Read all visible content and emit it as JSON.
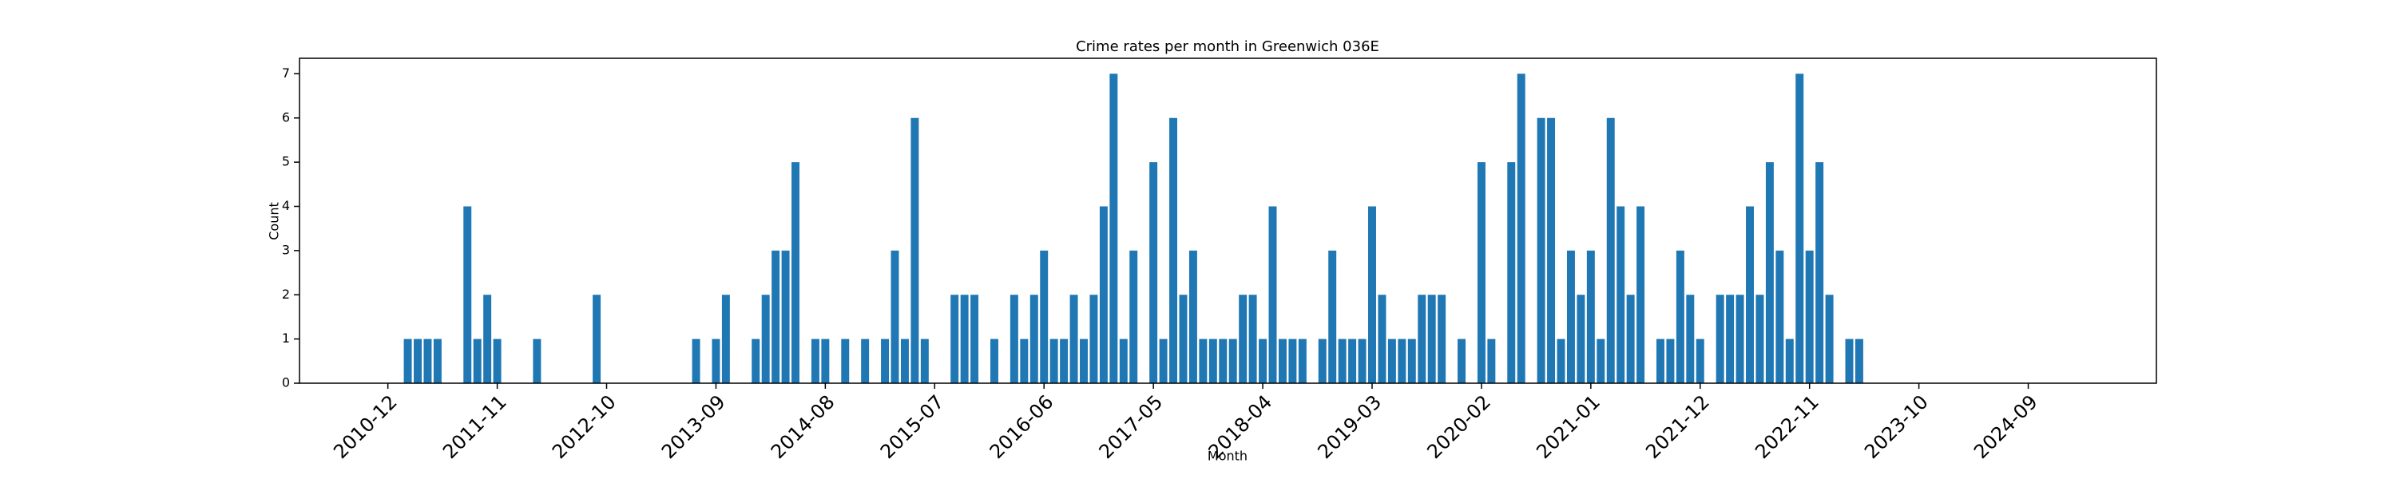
{
  "chart_data": {
    "type": "bar",
    "title": "Crime rates per month in Greenwich 036E",
    "xlabel": "Month",
    "ylabel": "Count",
    "color": "#1f77b4",
    "categories": [
      "2010-12",
      null,
      null,
      null,
      null,
      null,
      null,
      null,
      null,
      null,
      null,
      "2011-11",
      null,
      null,
      null,
      null,
      null,
      null,
      null,
      null,
      null,
      null,
      "2012-10",
      null,
      null,
      null,
      null,
      null,
      null,
      null,
      null,
      null,
      null,
      "2013-09",
      null,
      null,
      null,
      null,
      null,
      null,
      null,
      null,
      null,
      null,
      "2014-08",
      null,
      null,
      null,
      null,
      null,
      null,
      null,
      null,
      null,
      null,
      "2015-07",
      null,
      null,
      null,
      null,
      null,
      null,
      null,
      null,
      null,
      null,
      "2016-06",
      null,
      null,
      null,
      null,
      null,
      null,
      null,
      null,
      null,
      null,
      "2017-05",
      null,
      null,
      null,
      null,
      null,
      null,
      null,
      null,
      null,
      null,
      "2018-04",
      null,
      null,
      null,
      null,
      null,
      null,
      null,
      null,
      null,
      null,
      "2019-03",
      null,
      null,
      null,
      null,
      null,
      null,
      null,
      null,
      null,
      null,
      "2020-02",
      null,
      null,
      null,
      null,
      null,
      null,
      null,
      null,
      null,
      null,
      "2021-01",
      null,
      null,
      null,
      null,
      null,
      null,
      null,
      null,
      null,
      null,
      "2021-12",
      null,
      null,
      null,
      null,
      null,
      null,
      null,
      null,
      null,
      null,
      "2022-11",
      null,
      null,
      null,
      null,
      null,
      null,
      null,
      null,
      null,
      null,
      "2023-10",
      null,
      null,
      null,
      null,
      null,
      null,
      null,
      null,
      null,
      null,
      "2024-09",
      null,
      null,
      null,
      null
    ],
    "values": [
      0,
      0,
      1,
      1,
      1,
      1,
      0,
      0,
      4,
      1,
      2,
      1,
      0,
      0,
      0,
      1,
      0,
      0,
      0,
      0,
      0,
      2,
      0,
      0,
      0,
      0,
      0,
      0,
      0,
      0,
      0,
      1,
      0,
      1,
      2,
      0,
      0,
      1,
      2,
      3,
      3,
      5,
      0,
      1,
      1,
      0,
      1,
      0,
      1,
      0,
      1,
      3,
      1,
      6,
      1,
      0,
      0,
      2,
      2,
      2,
      0,
      1,
      0,
      2,
      1,
      2,
      3,
      1,
      1,
      2,
      1,
      2,
      4,
      7,
      1,
      3,
      0,
      5,
      1,
      6,
      2,
      3,
      1,
      1,
      1,
      1,
      2,
      2,
      1,
      4,
      1,
      1,
      1,
      0,
      1,
      3,
      1,
      1,
      1,
      4,
      2,
      1,
      1,
      1,
      2,
      2,
      2,
      0,
      1,
      0,
      5,
      1,
      0,
      5,
      7,
      0,
      6,
      6,
      1,
      3,
      2,
      3,
      1,
      6,
      4,
      2,
      4,
      0,
      1,
      1,
      3,
      2,
      1,
      0,
      2,
      2,
      2,
      4,
      2,
      5,
      3,
      1,
      7,
      3,
      5,
      2,
      0,
      1,
      1,
      0,
      0,
      0,
      0,
      0,
      0,
      0,
      0,
      0,
      0,
      0,
      0,
      0,
      0,
      0,
      0,
      0,
      0,
      0,
      0,
      0
    ],
    "ylim": [
      0,
      7.35
    ],
    "yticks": [
      0,
      1,
      2,
      3,
      4,
      5,
      6,
      7
    ]
  }
}
